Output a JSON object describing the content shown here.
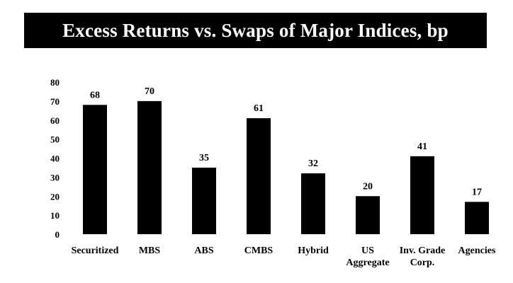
{
  "chart_data": {
    "type": "bar",
    "title": "Excess Returns vs. Swaps of Major Indices, bp",
    "categories": [
      [
        "Securitized"
      ],
      [
        "MBS"
      ],
      [
        "ABS"
      ],
      [
        "CMBS"
      ],
      [
        "Hybrid"
      ],
      [
        "US",
        "Aggregate"
      ],
      [
        "Inv. Grade",
        "Corp."
      ],
      [
        "Agencies"
      ]
    ],
    "values": [
      68,
      70,
      35,
      61,
      32,
      20,
      41,
      17
    ],
    "ylim": [
      0,
      80
    ],
    "yticks": [
      0,
      10,
      20,
      30,
      40,
      50,
      60,
      70,
      80
    ],
    "grid": false,
    "legend": "none",
    "bar_color": "#000000"
  }
}
